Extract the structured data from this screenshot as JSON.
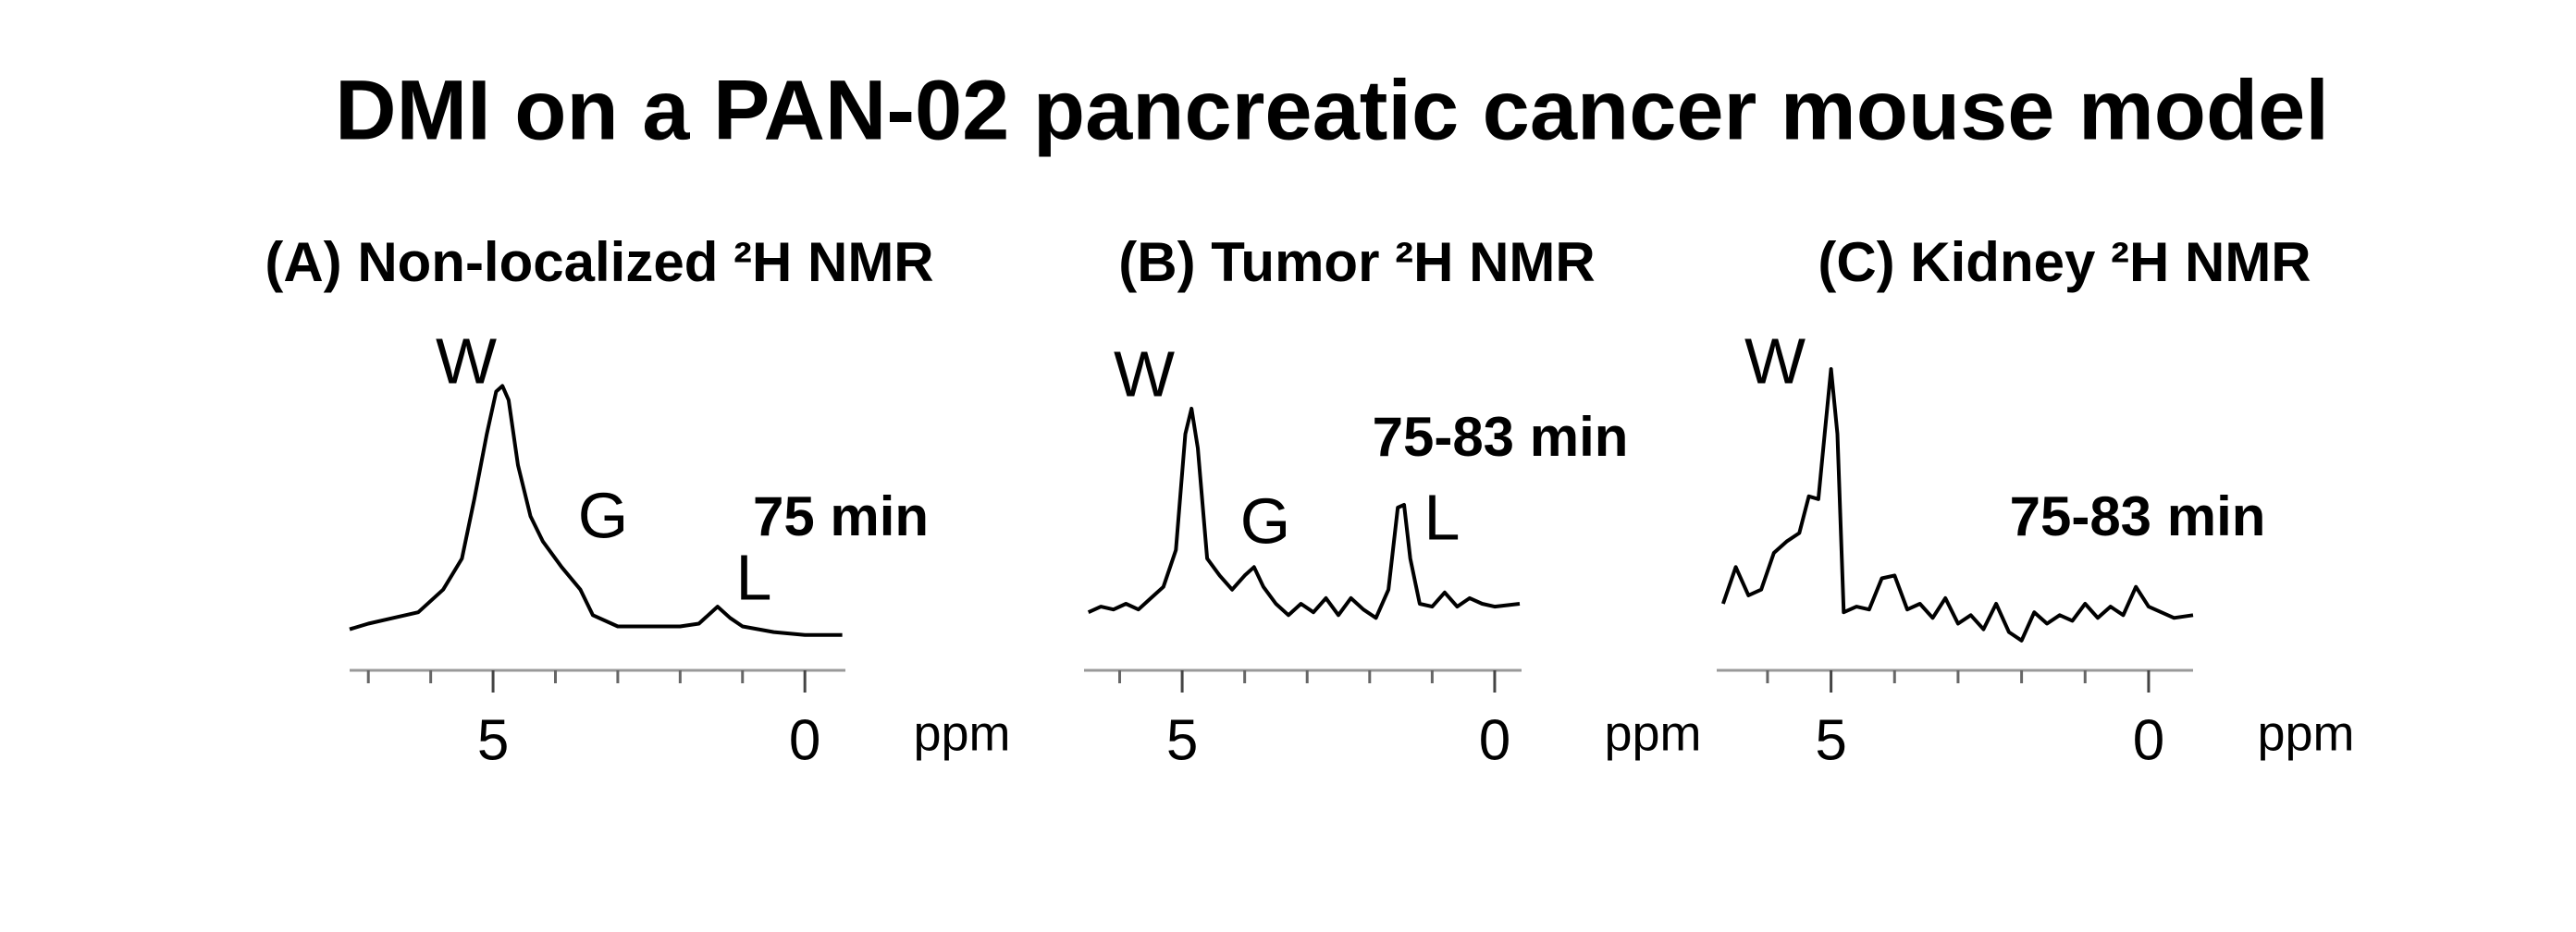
{
  "title": "DMI on a PAN-02 pancreatic cancer mouse model",
  "chart_data": [
    {
      "type": "line",
      "title": "(A) Non-localized ²H NMR",
      "xlabel": "ppm",
      "color": "#000000",
      "xlim": [
        7.3,
        -0.65
      ],
      "xticks": [
        5,
        0
      ],
      "xminor": [
        7,
        6,
        4,
        3,
        2,
        1
      ],
      "ylim": [
        0,
        100
      ],
      "x": [
        7.3,
        7.0,
        6.6,
        6.2,
        5.8,
        5.5,
        5.3,
        5.1,
        4.95,
        4.85,
        4.75,
        4.6,
        4.4,
        4.2,
        3.9,
        3.6,
        3.4,
        3.0,
        2.5,
        2.0,
        1.7,
        1.4,
        1.2,
        1.0,
        0.5,
        0,
        -0.6
      ],
      "values": [
        7,
        9,
        11,
        13,
        21,
        32,
        53,
        76,
        91,
        93,
        88,
        65,
        47,
        38,
        29,
        21,
        12,
        8,
        8,
        8,
        9,
        15,
        11,
        8,
        6,
        5,
        5
      ],
      "annotations": [
        "W",
        "G",
        "L",
        "75 min"
      ]
    },
    {
      "type": "line",
      "title": "(B) Tumor ²H NMR",
      "xlabel": "ppm",
      "color": "#000000",
      "xlim": [
        6.57,
        -0.43
      ],
      "xticks": [
        5,
        0
      ],
      "xminor": [
        6,
        4,
        3,
        2,
        1
      ],
      "ylim": [
        0,
        100
      ],
      "x": [
        6.5,
        6.3,
        6.1,
        5.9,
        5.7,
        5.5,
        5.3,
        5.1,
        4.95,
        4.85,
        4.75,
        4.6,
        4.4,
        4.2,
        4.0,
        3.85,
        3.7,
        3.5,
        3.3,
        3.1,
        2.9,
        2.7,
        2.5,
        2.3,
        2.1,
        1.9,
        1.7,
        1.55,
        1.45,
        1.35,
        1.2,
        1.0,
        0.8,
        0.6,
        0.4,
        0.2,
        0,
        -0.4
      ],
      "values": [
        13,
        15,
        14,
        16,
        14,
        18,
        22,
        35,
        76,
        85,
        71,
        32,
        26,
        21,
        26,
        29,
        22,
        16,
        12,
        16,
        13,
        18,
        12,
        18,
        14,
        11,
        21,
        50,
        51,
        32,
        16,
        15,
        20,
        15,
        18,
        16,
        15,
        16
      ],
      "annotations": [
        "W",
        "G",
        "L",
        "75-83 min"
      ]
    },
    {
      "type": "line",
      "title": "(C) Kidney ²H NMR",
      "xlabel": "ppm",
      "color": "#000000",
      "xlim": [
        6.8,
        -0.7
      ],
      "xticks": [
        5,
        0
      ],
      "xminor": [
        6,
        4,
        3,
        2,
        1
      ],
      "ylim": [
        0,
        100
      ],
      "x": [
        6.7,
        6.5,
        6.3,
        6.1,
        5.9,
        5.7,
        5.5,
        5.35,
        5.2,
        5.1,
        5.0,
        4.9,
        4.8,
        4.6,
        4.4,
        4.2,
        4.0,
        3.8,
        3.6,
        3.4,
        3.2,
        3.0,
        2.8,
        2.6,
        2.4,
        2.2,
        2.0,
        1.8,
        1.6,
        1.4,
        1.2,
        1.0,
        0.8,
        0.6,
        0.4,
        0.2,
        0,
        -0.4,
        -0.7
      ],
      "values": [
        16,
        29,
        19,
        21,
        34,
        38,
        41,
        54,
        53,
        76,
        99,
        76,
        13,
        15,
        14,
        25,
        26,
        14,
        16,
        11,
        18,
        9,
        12,
        7,
        16,
        6,
        3,
        13,
        9,
        12,
        10,
        16,
        11,
        15,
        12,
        22,
        15,
        11,
        12
      ],
      "annotations": [
        "W",
        "75-83 min"
      ]
    }
  ]
}
